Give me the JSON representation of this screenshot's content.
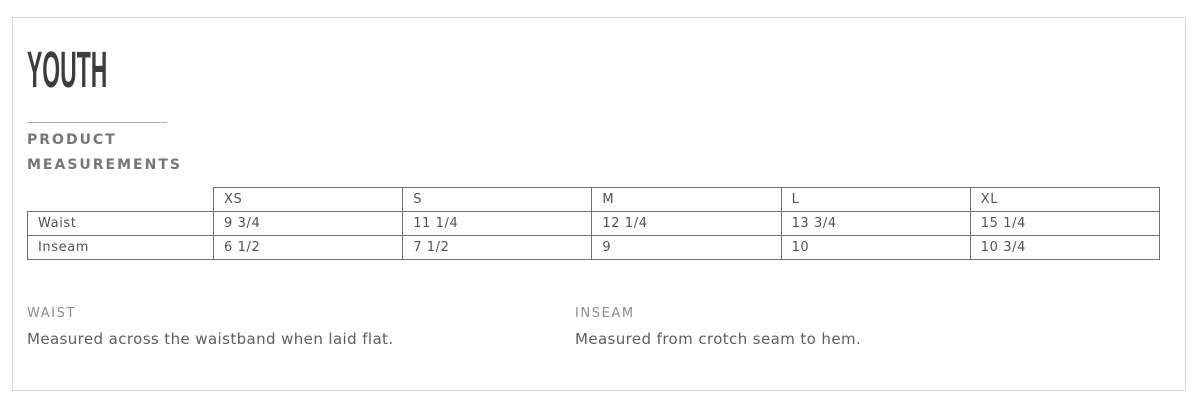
{
  "page": {
    "title": "YOUTH",
    "section_title": "PRODUCT MEASUREMENTS"
  },
  "table": {
    "columns": [
      "XS",
      "S",
      "M",
      "L",
      "XL"
    ],
    "rows": [
      {
        "label": "Waist",
        "values": [
          "9 3/4",
          "11 1/4",
          "12 1/4",
          "13 3/4",
          "15 1/4"
        ]
      },
      {
        "label": "Inseam",
        "values": [
          "6 1/2",
          "7 1/2",
          "9",
          "10",
          "10 3/4"
        ]
      }
    ]
  },
  "definitions": [
    {
      "term": "WAIST",
      "description": "Measured across the waistband when laid flat."
    },
    {
      "term": "INSEAM",
      "description": "Measured from crotch seam to hem."
    }
  ],
  "colors": {
    "title_text": "#3d3d3d",
    "section_title_text": "#76767b",
    "table_border": "#6f6f6f",
    "table_text": "#525257",
    "definition_term_text": "#8d8d8d",
    "definition_body_text": "#5e5e5e",
    "card_border": "#d8d8d8"
  }
}
